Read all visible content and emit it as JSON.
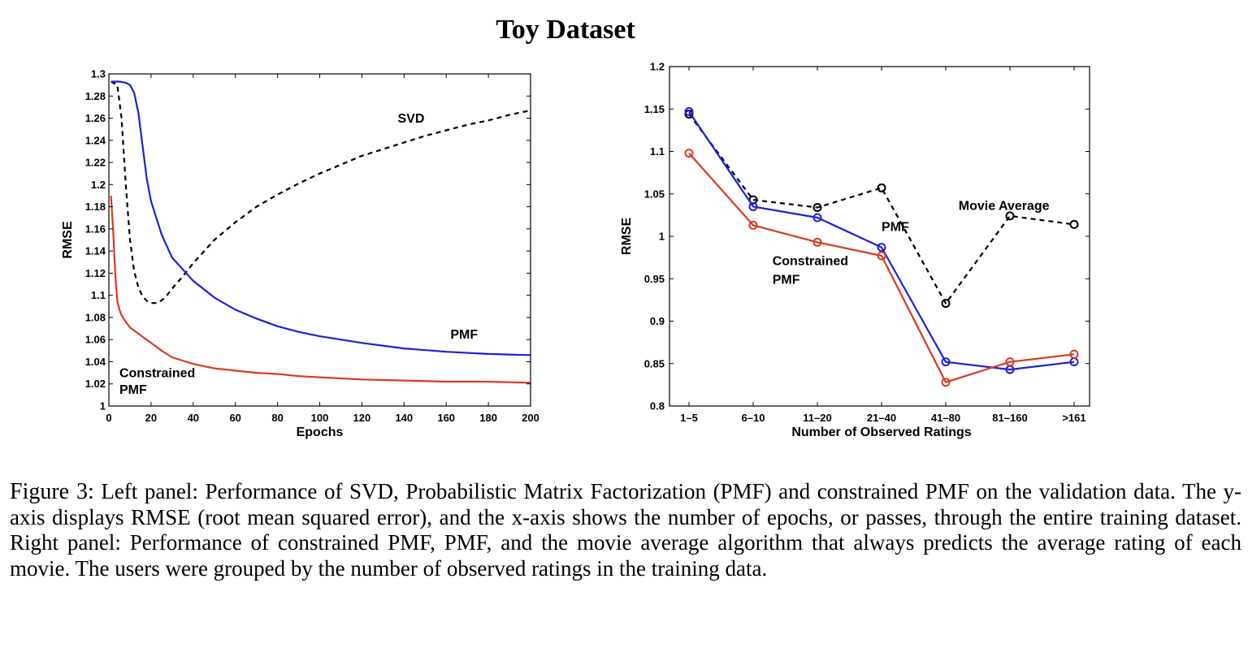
{
  "figure_title": "Toy Dataset",
  "caption": {
    "prefix": "Figure 3:",
    "text": "Left panel: Performance of SVD, Probabilistic Matrix Factorization (PMF) and constrained PMF on the validation data. The y-axis displays RMSE (root mean squared error), and the x-axis shows the number of epochs, or passes, through the entire training dataset. Right panel: Performance of constrained PMF, PMF, and the movie average algorithm that always predicts the average rating of each movie. The users were grouped by the number of observed ratings in the training data."
  },
  "chart_data": [
    {
      "type": "line",
      "xlabel": "Epochs",
      "ylabel": "RMSE",
      "xlim": [
        0,
        200
      ],
      "ylim": [
        1,
        1.3
      ],
      "xticks": [
        "0",
        "20",
        "40",
        "60",
        "80",
        "100",
        "120",
        "140",
        "160",
        "180",
        "200"
      ],
      "yticks": [
        "1",
        "1.02",
        "1.04",
        "1.06",
        "1.08",
        "1.1",
        "1.12",
        "1.14",
        "1.16",
        "1.18",
        "1.2",
        "1.22",
        "1.24",
        "1.26",
        "1.28",
        "1.3"
      ],
      "grid": false,
      "series": [
        {
          "name": "SVD",
          "color": "#000000",
          "dashed": true,
          "x": [
            1,
            4,
            6,
            8,
            10,
            12,
            14,
            16,
            18,
            20,
            22,
            24,
            26,
            28,
            30,
            35,
            40,
            50,
            60,
            70,
            80,
            90,
            100,
            110,
            120,
            130,
            140,
            150,
            160,
            170,
            180,
            190,
            200
          ],
          "y": [
            1.293,
            1.29,
            1.26,
            1.2,
            1.15,
            1.122,
            1.107,
            1.099,
            1.095,
            1.093,
            1.093,
            1.094,
            1.097,
            1.101,
            1.106,
            1.117,
            1.129,
            1.15,
            1.166,
            1.18,
            1.191,
            1.201,
            1.21,
            1.218,
            1.226,
            1.232,
            1.238,
            1.244,
            1.249,
            1.254,
            1.258,
            1.263,
            1.267
          ]
        },
        {
          "name": "PMF",
          "color": "#1f1fd8",
          "dashed": false,
          "x": [
            1,
            5,
            8,
            10,
            12,
            14,
            16,
            18,
            20,
            25,
            30,
            40,
            50,
            60,
            70,
            80,
            90,
            100,
            120,
            140,
            160,
            180,
            200
          ],
          "y": [
            1.293,
            1.293,
            1.292,
            1.29,
            1.283,
            1.265,
            1.235,
            1.205,
            1.185,
            1.155,
            1.134,
            1.113,
            1.098,
            1.087,
            1.079,
            1.072,
            1.067,
            1.063,
            1.057,
            1.052,
            1.049,
            1.047,
            1.046
          ]
        },
        {
          "name": "Constrained PMF",
          "color": "#d83a24",
          "dashed": false,
          "x": [
            1,
            2,
            3,
            4,
            5,
            6,
            8,
            10,
            15,
            20,
            25,
            30,
            40,
            50,
            60,
            70,
            80,
            90,
            100,
            120,
            140,
            160,
            180,
            200
          ],
          "y": [
            1.19,
            1.16,
            1.12,
            1.095,
            1.087,
            1.082,
            1.076,
            1.071,
            1.064,
            1.057,
            1.05,
            1.044,
            1.038,
            1.034,
            1.032,
            1.03,
            1.029,
            1.027,
            1.026,
            1.024,
            1.023,
            1.022,
            1.022,
            1.021
          ]
        }
      ],
      "annotations": [
        {
          "text": "SVD",
          "x": 137,
          "y": 1.256
        },
        {
          "text": "PMF",
          "x": 162,
          "y": 1.061
        },
        {
          "text": "Constrained",
          "x": 5,
          "y": 1.026
        },
        {
          "text": "PMF",
          "x": 5,
          "y": 1.011
        }
      ]
    },
    {
      "type": "line",
      "xlabel": "Number of Observed Ratings",
      "ylabel": "RMSE",
      "categories": [
        "1–5",
        "6–10",
        "11–20",
        "21–40",
        "41–80",
        "81–160",
        ">161"
      ],
      "ylim": [
        0.8,
        1.2
      ],
      "yticks": [
        "0.8",
        "0.85",
        "0.9",
        "0.95",
        "1",
        "1.05",
        "1.1",
        "1.15",
        "1.2"
      ],
      "grid": false,
      "marker": "circle",
      "series": [
        {
          "name": "Movie Average",
          "color": "#000000",
          "dashed": true,
          "values": [
            1.144,
            1.043,
            1.034,
            1.057,
            0.921,
            1.024,
            1.014
          ]
        },
        {
          "name": "PMF",
          "color": "#1f1fd8",
          "dashed": false,
          "values": [
            1.147,
            1.035,
            1.022,
            0.987,
            0.852,
            0.843,
            0.852
          ]
        },
        {
          "name": "Constrained PMF",
          "color": "#d83a24",
          "dashed": false,
          "values": [
            1.098,
            1.013,
            0.993,
            0.977,
            0.828,
            0.852,
            0.861
          ]
        }
      ],
      "annotations": [
        {
          "text": "Movie Average",
          "x": 4.2,
          "y": 1.031
        },
        {
          "text": "PMF",
          "x": 3.0,
          "y": 1.006
        },
        {
          "text": "Constrained",
          "x": 1.3,
          "y": 0.966
        },
        {
          "text": "PMF",
          "x": 1.3,
          "y": 0.944
        }
      ]
    }
  ]
}
